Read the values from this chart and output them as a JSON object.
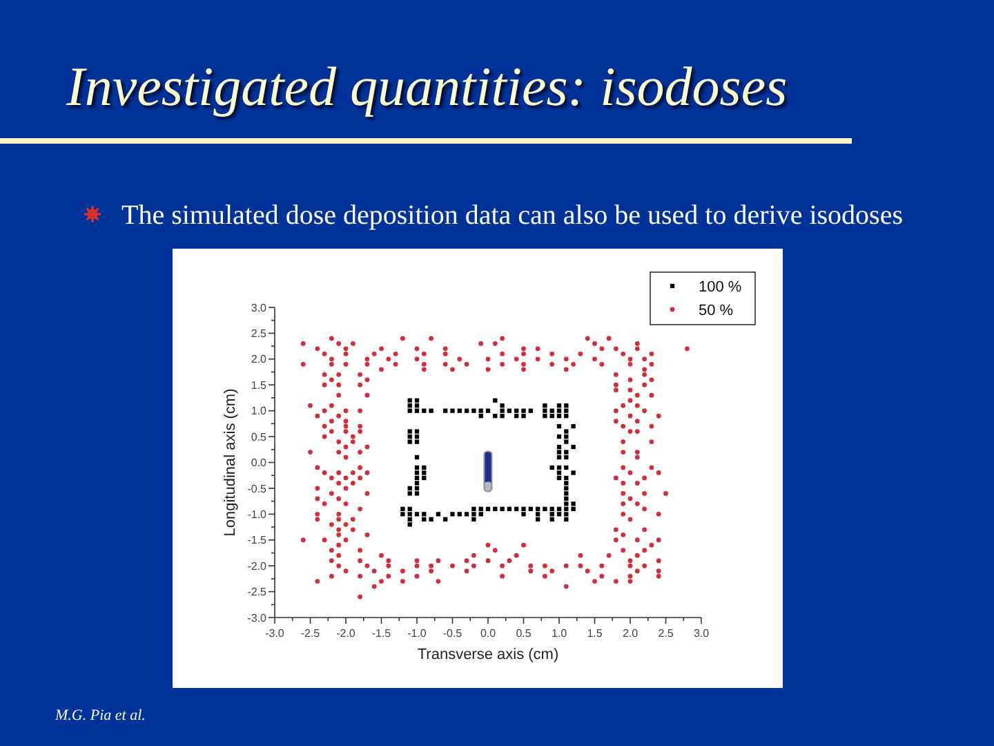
{
  "chart_data": {
    "type": "scatter",
    "title": "Investigated quantities: isodoses",
    "subtitle": "The simulated dose deposition data can also be used to derive isodoses",
    "xlabel": "Transverse axis (cm)",
    "ylabel": "Longitudinal axis (cm)",
    "annotations": [
      "M.G. Pia et al."
    ],
    "xlim": [
      -3,
      3
    ],
    "ylim": [
      -3,
      3
    ],
    "xticks": [
      {
        "value": -3,
        "label": "-3.0"
      },
      {
        "value": -2.75,
        "label": null
      },
      {
        "value": -2.5,
        "label": "-2.5"
      },
      {
        "value": -2.25,
        "label": null
      },
      {
        "value": -2,
        "label": "-2.0"
      },
      {
        "value": -1.75,
        "label": null
      },
      {
        "value": -1.5,
        "label": "-1.5"
      },
      {
        "value": -1.25,
        "label": null
      },
      {
        "value": -1,
        "label": "-1.0"
      },
      {
        "value": -0.75,
        "label": null
      },
      {
        "value": -0.5,
        "label": "-0.5"
      },
      {
        "value": -0.25,
        "label": null
      },
      {
        "value": 0,
        "label": "0.0"
      },
      {
        "value": 0.25,
        "label": null
      },
      {
        "value": 0.5,
        "label": "0.5"
      },
      {
        "value": 0.75,
        "label": null
      },
      {
        "value": 1,
        "label": "1.0"
      },
      {
        "value": 1.25,
        "label": null
      },
      {
        "value": 1.5,
        "label": "1.5"
      },
      {
        "value": 1.75,
        "label": null
      },
      {
        "value": 2,
        "label": "2.0"
      },
      {
        "value": 2.25,
        "label": null
      },
      {
        "value": 2.5,
        "label": "2.5"
      },
      {
        "value": 2.75,
        "label": null
      },
      {
        "value": 3,
        "label": "3.0"
      }
    ],
    "yticks": [
      {
        "value": -3,
        "label": "-3.0"
      },
      {
        "value": -2.75,
        "label": null
      },
      {
        "value": -2.5,
        "label": "-2.5"
      },
      {
        "value": -2.25,
        "label": null
      },
      {
        "value": -2,
        "label": "-2.0"
      },
      {
        "value": -1.75,
        "label": null
      },
      {
        "value": -1.5,
        "label": "-1.5"
      },
      {
        "value": -1.25,
        "label": null
      },
      {
        "value": -1,
        "label": "-1.0"
      },
      {
        "value": -0.75,
        "label": null
      },
      {
        "value": -0.5,
        "label": "-0.5"
      },
      {
        "value": -0.25,
        "label": null
      },
      {
        "value": 0,
        "label": "0.0"
      },
      {
        "value": 0.25,
        "label": null
      },
      {
        "value": 0.5,
        "label": "0.5"
      },
      {
        "value": 0.75,
        "label": null
      },
      {
        "value": 1,
        "label": "1.0"
      },
      {
        "value": 1.25,
        "label": null
      },
      {
        "value": 1.5,
        "label": "1.5"
      },
      {
        "value": 1.75,
        "label": null
      },
      {
        "value": 2,
        "label": "2.0"
      },
      {
        "value": 2.25,
        "label": null
      },
      {
        "value": 2.5,
        "label": "2.5"
      },
      {
        "value": 2.75,
        "label": null
      },
      {
        "value": 3,
        "label": "3.0"
      }
    ],
    "legend": "top right",
    "series": [
      {
        "name": "100 %",
        "color": "#000000",
        "marker": "square",
        "x": [
          -1.1,
          -1.0,
          0.1,
          -1.1,
          -1.0,
          0.2,
          0.8,
          1.0,
          1.1,
          -1.1,
          -1.0,
          -0.9,
          -0.8,
          -0.6,
          -0.5,
          -0.4,
          -0.3,
          -0.2,
          -0.1,
          0.0,
          0.2,
          0.3,
          0.4,
          0.5,
          0.6,
          0.8,
          0.9,
          1.0,
          1.1,
          -0.1,
          0.1,
          0.2,
          0.4,
          0.5,
          0.8,
          0.9,
          1.0,
          1.1,
          1.0,
          1.2,
          -1.1,
          -1.0,
          1.1,
          -1.1,
          -1.0,
          1.0,
          1.1,
          -1.1,
          -1.0,
          1.1,
          1.0,
          1.2,
          1.0,
          1.1,
          -1.0,
          1.0,
          1.1,
          -1.0,
          -0.9,
          0.9,
          1.0,
          1.1,
          -1.0,
          -0.9,
          1.0,
          1.2,
          -1.0,
          -0.9,
          1.0,
          1.1,
          -1.0,
          1.1,
          -1.1,
          -1.0,
          1.1,
          -1.1,
          -1.0,
          1.1,
          1.1,
          1.1,
          1.2,
          -1.2,
          -1.1,
          -0.2,
          -0.1,
          0.0,
          0.1,
          0.2,
          0.3,
          0.4,
          0.5,
          0.6,
          0.7,
          0.8,
          0.9,
          1.0,
          1.1,
          1.2,
          -1.2,
          -1.1,
          -1.0,
          -0.9,
          -0.7,
          -0.5,
          -0.4,
          -0.3,
          -0.2,
          -0.1,
          0.5,
          0.7,
          0.9,
          1.0,
          1.1,
          -1.1,
          -0.9,
          -0.8,
          -0.6,
          -0.2,
          0.7,
          0.9,
          1.1,
          -1.1
        ],
        "values": [
          1.2,
          1.2,
          1.2,
          1.1,
          1.1,
          1.1,
          1.1,
          1.1,
          1.1,
          1.0,
          1.0,
          1.0,
          1.0,
          1.0,
          1.0,
          1.0,
          1.0,
          1.0,
          1.0,
          1.0,
          1.0,
          1.0,
          1.0,
          1.0,
          1.0,
          1.0,
          1.0,
          1.0,
          1.0,
          0.9,
          0.9,
          0.9,
          0.9,
          0.9,
          0.9,
          0.9,
          0.9,
          0.9,
          0.7,
          0.7,
          0.6,
          0.6,
          0.6,
          0.5,
          0.5,
          0.5,
          0.5,
          0.4,
          0.4,
          0.4,
          0.3,
          0.3,
          0.2,
          0.2,
          0.1,
          0.1,
          0.1,
          -0.1,
          -0.1,
          -0.1,
          -0.1,
          -0.1,
          -0.2,
          -0.2,
          -0.2,
          -0.2,
          -0.3,
          -0.3,
          -0.3,
          -0.3,
          -0.4,
          -0.4,
          -0.5,
          -0.5,
          -0.5,
          -0.6,
          -0.6,
          -0.6,
          -0.7,
          -0.8,
          -0.8,
          -0.9,
          -0.9,
          -0.9,
          -0.9,
          -0.9,
          -0.9,
          -0.9,
          -0.9,
          -0.9,
          -0.9,
          -0.9,
          -0.9,
          -0.9,
          -0.9,
          -0.9,
          -0.9,
          -0.9,
          -1.0,
          -1.0,
          -1.0,
          -1.0,
          -1.0,
          -1.0,
          -1.0,
          -1.0,
          -1.0,
          -1.0,
          -1.0,
          -1.0,
          -1.0,
          -1.0,
          -1.0,
          -1.1,
          -1.1,
          -1.1,
          -1.1,
          -1.1,
          -1.1,
          -1.1,
          -1.1,
          -1.2
        ]
      },
      {
        "name": "50 %",
        "color": "#d42d3a",
        "marker": "circle",
        "x": [
          -2.2,
          -1.2,
          -0.8,
          0.2,
          1.4,
          1.7,
          -2.6,
          -2.1,
          -1.9,
          -0.1,
          0.1,
          1.5,
          2.1,
          -2.4,
          -2.0,
          -1.5,
          -1.0,
          -0.6,
          0.5,
          0.7,
          1.6,
          1.8,
          2.1,
          2.8,
          -2.3,
          -2.0,
          -1.6,
          -1.3,
          -0.9,
          -0.6,
          0.2,
          0.5,
          0.9,
          1.3,
          1.9,
          2.3,
          -2.2,
          -1.7,
          -1.4,
          -1.0,
          -0.4,
          0.0,
          0.4,
          0.7,
          1.1,
          1.5,
          2.0,
          2.2,
          -2.6,
          -2.2,
          -2.0,
          -1.7,
          -1.3,
          -0.9,
          -0.6,
          -0.3,
          0.2,
          0.5,
          0.9,
          1.2,
          1.6,
          2.0,
          2.3,
          -1.5,
          -0.9,
          -0.5,
          0.0,
          0.5,
          1.1,
          2.2,
          -2.3,
          -2.1,
          -1.8,
          1.8,
          2.2,
          -2.2,
          -1.7,
          2.0,
          2.3,
          -2.3,
          -2.1,
          -1.8,
          1.8,
          2.2,
          1.8,
          2.0,
          -2.1,
          -1.7,
          2.1,
          2.3,
          2.0,
          -2.5,
          -2.2,
          1.9,
          2.1,
          -2.3,
          -2.0,
          -1.8,
          1.8,
          2.2,
          -2.4,
          -2.1,
          2.0,
          2.4,
          -2.2,
          -2.0,
          1.8,
          2.1,
          -2.3,
          -2.0,
          -1.8,
          1.9,
          2.3,
          -2.2,
          -2.0,
          -1.8,
          2.0,
          2.1,
          -2.3,
          -1.9,
          -2.1,
          -1.9,
          1.9,
          2.3,
          -2.0,
          -1.7,
          -2.5,
          -2.1,
          -1.8,
          1.9,
          2.1,
          -2.0,
          2.1,
          -2.4,
          -1.8,
          1.9,
          2.3,
          -2.3,
          -2.1,
          -1.9,
          -1.7,
          2.0,
          2.4,
          -2.2,
          -2.0,
          -1.8,
          1.8,
          2.2,
          -2.1,
          -1.9,
          1.9,
          2.1,
          -2.4,
          -2.0,
          -2.2,
          -1.7,
          1.9,
          2.2,
          2.5,
          -2.4,
          -2.1,
          2.0,
          -2.3,
          -2.0,
          1.9,
          2.1,
          -1.8,
          2.2,
          -2.4,
          -2.1,
          1.9,
          2.4,
          -2.4,
          -2.1,
          -1.9,
          2.0,
          -2.2,
          -2.0,
          -2.1,
          -1.9,
          1.8,
          2.2,
          -2.1,
          -1.7,
          1.9,
          -2.6,
          -2.3,
          -2.0,
          1.8,
          2.1,
          2.4,
          -2.1,
          0.0,
          0.5,
          2.3,
          -2.2,
          -1.8,
          0.1,
          1.9,
          2.2,
          -2.1,
          -1.5,
          -0.2,
          0.4,
          1.3,
          1.7,
          2.1,
          -2.2,
          -1.8,
          -1.4,
          -1.0,
          -0.7,
          -0.3,
          0.0,
          0.3,
          2.0,
          2.4,
          -2.1,
          -1.7,
          -1.4,
          -1.0,
          -0.8,
          -0.5,
          -0.2,
          0.2,
          0.6,
          0.8,
          1.1,
          1.3,
          1.6,
          2.0,
          2.2,
          -2.0,
          -1.6,
          -1.2,
          -0.8,
          -0.3,
          0.6,
          0.9,
          1.4,
          2.1,
          2.4,
          -2.2,
          -1.8,
          -1.4,
          -1.0,
          0.2,
          0.8,
          1.6,
          2.0,
          2.4,
          -2.4,
          -1.5,
          -1.2,
          -0.7,
          1.5,
          1.8,
          2.0,
          -1.6,
          1.1,
          -1.8
        ],
        "values": [
          2.4,
          2.4,
          2.4,
          2.4,
          2.4,
          2.4,
          2.3,
          2.3,
          2.3,
          2.3,
          2.3,
          2.3,
          2.3,
          2.2,
          2.2,
          2.2,
          2.2,
          2.2,
          2.2,
          2.2,
          2.2,
          2.2,
          2.2,
          2.2,
          2.1,
          2.1,
          2.1,
          2.1,
          2.1,
          2.1,
          2.1,
          2.1,
          2.1,
          2.1,
          2.1,
          2.1,
          2.0,
          2.0,
          2.0,
          2.0,
          2.0,
          2.0,
          2.0,
          2.0,
          2.0,
          2.0,
          2.0,
          2.0,
          1.9,
          1.9,
          1.9,
          1.9,
          1.9,
          1.9,
          1.9,
          1.9,
          1.9,
          1.9,
          1.9,
          1.9,
          1.9,
          1.9,
          1.9,
          1.8,
          1.8,
          1.8,
          1.8,
          1.8,
          1.8,
          1.8,
          1.7,
          1.7,
          1.7,
          1.7,
          1.7,
          1.6,
          1.6,
          1.6,
          1.6,
          1.5,
          1.5,
          1.5,
          1.5,
          1.5,
          1.4,
          1.4,
          1.3,
          1.3,
          1.3,
          1.3,
          1.2,
          1.1,
          1.1,
          1.1,
          1.1,
          1.0,
          1.0,
          1.0,
          1.0,
          1.0,
          0.9,
          0.9,
          0.9,
          0.9,
          0.8,
          0.8,
          0.8,
          0.8,
          0.7,
          0.7,
          0.7,
          0.7,
          0.7,
          0.6,
          0.6,
          0.6,
          0.6,
          0.6,
          0.5,
          0.5,
          0.4,
          0.4,
          0.4,
          0.4,
          0.3,
          0.3,
          0.2,
          0.2,
          0.2,
          0.2,
          0.2,
          0.1,
          0.1,
          -0.1,
          -0.1,
          -0.1,
          -0.1,
          -0.2,
          -0.2,
          -0.2,
          -0.2,
          -0.2,
          -0.2,
          -0.3,
          -0.3,
          -0.3,
          -0.3,
          -0.3,
          -0.4,
          -0.4,
          -0.4,
          -0.4,
          -0.5,
          -0.5,
          -0.6,
          -0.6,
          -0.6,
          -0.6,
          -0.6,
          -0.7,
          -0.7,
          -0.7,
          -0.8,
          -0.8,
          -0.8,
          -0.8,
          -0.9,
          -0.9,
          -1.0,
          -1.0,
          -1.0,
          -1.0,
          -1.1,
          -1.1,
          -1.1,
          -1.1,
          -1.2,
          -1.2,
          -1.3,
          -1.3,
          -1.3,
          -1.3,
          -1.4,
          -1.4,
          -1.4,
          -1.5,
          -1.5,
          -1.5,
          -1.5,
          -1.5,
          -1.5,
          -1.6,
          -1.6,
          -1.6,
          -1.6,
          -1.7,
          -1.7,
          -1.7,
          -1.7,
          -1.7,
          -1.8,
          -1.8,
          -1.8,
          -1.8,
          -1.8,
          -1.8,
          -1.8,
          -1.9,
          -1.9,
          -1.9,
          -1.9,
          -1.9,
          -1.9,
          -1.9,
          -1.9,
          -1.9,
          -1.9,
          -2.0,
          -2.0,
          -2.0,
          -2.0,
          -2.0,
          -2.0,
          -2.0,
          -2.0,
          -2.0,
          -2.0,
          -2.0,
          -2.0,
          -2.0,
          -2.0,
          -2.0,
          -2.1,
          -2.1,
          -2.1,
          -2.1,
          -2.1,
          -2.1,
          -2.1,
          -2.1,
          -2.1,
          -2.1,
          -2.2,
          -2.2,
          -2.2,
          -2.2,
          -2.2,
          -2.2,
          -2.2,
          -2.2,
          -2.2,
          -2.3,
          -2.3,
          -2.3,
          -2.3,
          -2.3,
          -2.3,
          -2.3,
          -2.4,
          -2.4,
          -2.6
        ]
      }
    ]
  }
}
